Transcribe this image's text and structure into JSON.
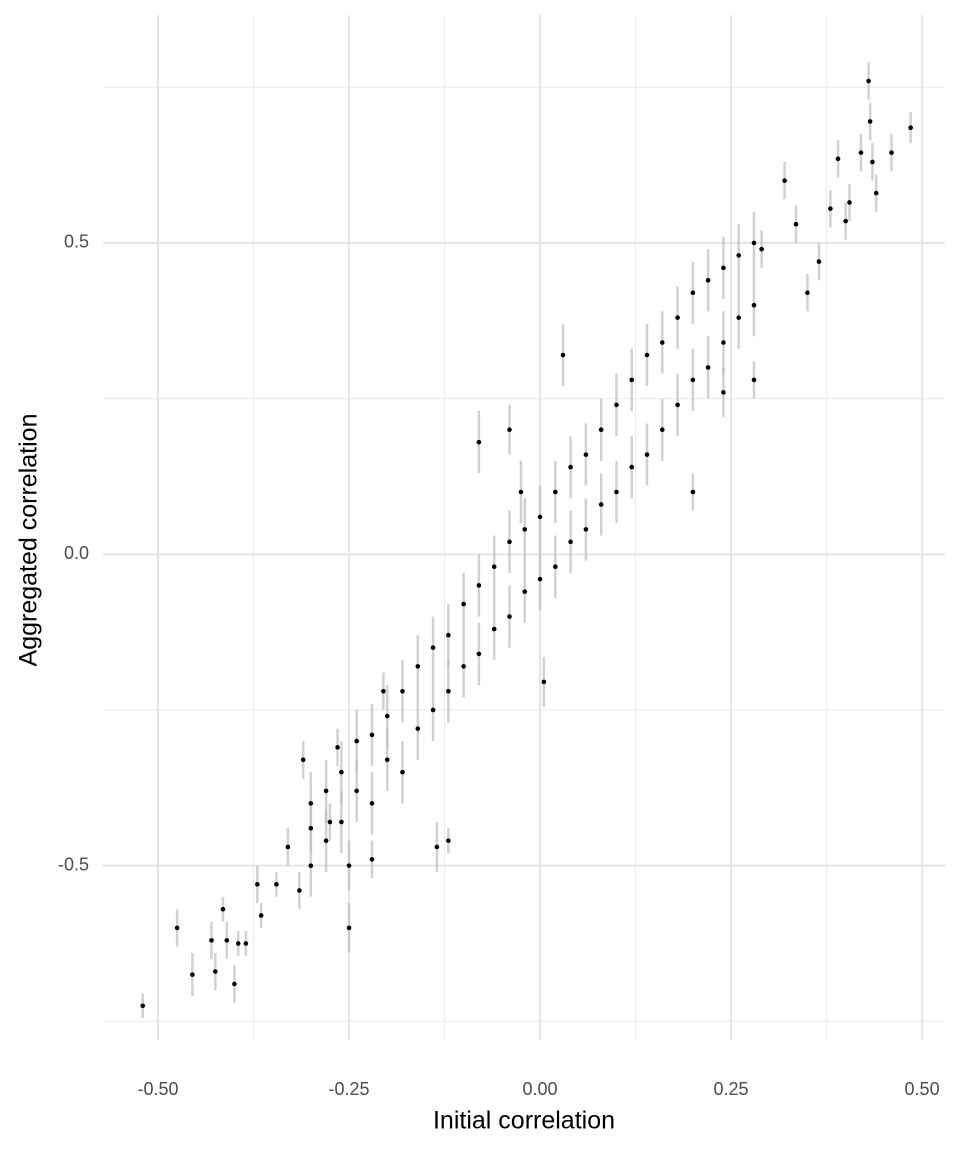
{
  "chart_data": {
    "type": "scatter",
    "x_label": "Initial correlation",
    "y_label": "Aggregated correlation",
    "xlim": [
      -0.572,
      0.53
    ],
    "ylim": [
      -0.78,
      0.866
    ],
    "xticks": [
      {
        "value": -0.5,
        "label": "-0.50"
      },
      {
        "value": -0.25,
        "label": "-0.25"
      },
      {
        "value": 0,
        "label": "0.00"
      },
      {
        "value": 0.25,
        "label": "0.25"
      },
      {
        "value": 0.5,
        "label": "0.50"
      }
    ],
    "yticks": [
      -0.5,
      {
        "value": 0,
        "label": "0.0"
      },
      0.5
    ],
    "x_minor_gridlines": [
      -0.375,
      -0.125,
      0.125,
      0.375
    ],
    "y_minor_gridlines": [
      -0.75,
      -0.25,
      0.25,
      0.75
    ],
    "grid": true,
    "color": "#000000",
    "error_color": "#bdbdbd",
    "x": [
      -0.52,
      -0.475,
      -0.455,
      -0.43,
      -0.425,
      -0.415,
      -0.41,
      -0.4,
      -0.395,
      -0.385,
      -0.37,
      -0.365,
      -0.345,
      -0.33,
      -0.315,
      -0.31,
      -0.3,
      -0.275,
      -0.265,
      -0.25,
      -0.25,
      -0.22,
      -0.205,
      -0.135,
      -0.12,
      -0.08,
      -0.04,
      -0.025,
      0.03,
      0.005,
      0.2,
      0.24,
      0.28,
      0.29,
      0.32,
      0.335,
      0.35,
      0.365,
      0.38,
      0.39,
      0.4,
      0.405,
      0.42,
      0.43,
      0.432,
      0.435,
      0.44,
      0.46,
      0.485,
      -0.3,
      -0.3,
      -0.28,
      -0.28,
      -0.26,
      -0.26,
      -0.24,
      -0.24,
      -0.22,
      -0.22,
      -0.2,
      -0.2,
      -0.18,
      -0.18,
      -0.16,
      -0.16,
      -0.14,
      -0.14,
      -0.12,
      -0.12,
      -0.1,
      -0.1,
      -0.08,
      -0.08,
      -0.06,
      -0.06,
      -0.04,
      -0.04,
      -0.02,
      -0.02,
      0,
      0,
      0.02,
      0.02,
      0.04,
      0.04,
      0.06,
      0.06,
      0.08,
      0.08,
      0.1,
      0.1,
      0.12,
      0.12,
      0.14,
      0.14,
      0.16,
      0.16,
      0.18,
      0.18,
      0.2,
      0.2,
      0.22,
      0.22,
      0.24,
      0.24,
      0.26,
      0.26,
      0.28,
      0.28
    ],
    "y": [
      -0.725,
      -0.6,
      -0.675,
      -0.62,
      -0.67,
      -0.57,
      -0.62,
      -0.69,
      -0.625,
      -0.625,
      -0.53,
      -0.58,
      -0.53,
      -0.47,
      -0.54,
      -0.33,
      -0.44,
      -0.43,
      -0.31,
      -0.6,
      -0.5,
      -0.49,
      -0.22,
      -0.47,
      -0.46,
      0.18,
      0.2,
      0.1,
      0.32,
      -0.205,
      0.1,
      0.26,
      0.28,
      0.49,
      0.6,
      0.53,
      0.42,
      0.47,
      0.555,
      0.635,
      0.535,
      0.565,
      0.645,
      0.76,
      0.695,
      0.63,
      0.58,
      0.645,
      0.685,
      -0.5,
      -0.4,
      -0.46,
      -0.38,
      -0.43,
      -0.35,
      -0.38,
      -0.3,
      -0.4,
      -0.29,
      -0.33,
      -0.26,
      -0.35,
      -0.22,
      -0.28,
      -0.18,
      -0.25,
      -0.15,
      -0.22,
      -0.13,
      -0.18,
      -0.08,
      -0.16,
      -0.05,
      -0.12,
      -0.02,
      -0.1,
      0.02,
      -0.06,
      0.04,
      -0.04,
      0.06,
      -0.02,
      0.1,
      0.02,
      0.14,
      0.04,
      0.16,
      0.08,
      0.2,
      0.1,
      0.24,
      0.14,
      0.28,
      0.16,
      0.32,
      0.2,
      0.34,
      0.24,
      0.38,
      0.28,
      0.42,
      0.3,
      0.44,
      0.34,
      0.46,
      0.38,
      0.48,
      0.4,
      0.5
    ],
    "error": [
      0.02,
      0.03,
      0.035,
      0.03,
      0.03,
      0.02,
      0.03,
      0.03,
      0.02,
      0.02,
      0.03,
      0.02,
      0.02,
      0.03,
      0.03,
      0.03,
      0.04,
      0.03,
      0.03,
      0.04,
      0.04,
      0.03,
      0.03,
      0.04,
      0.02,
      0.05,
      0.04,
      0.05,
      0.05,
      0.04,
      0.03,
      0.04,
      0.03,
      0.03,
      0.03,
      0.03,
      0.03,
      0.03,
      0.03,
      0.03,
      0.03,
      0.03,
      0.03,
      0.03,
      0.03,
      0.03,
      0.03,
      0.03,
      0.025,
      0.05,
      0.05,
      0.05,
      0.05,
      0.05,
      0.05,
      0.05,
      0.05,
      0.05,
      0.05,
      0.05,
      0.05,
      0.05,
      0.05,
      0.05,
      0.05,
      0.05,
      0.05,
      0.05,
      0.05,
      0.05,
      0.05,
      0.05,
      0.05,
      0.05,
      0.05,
      0.05,
      0.05,
      0.05,
      0.05,
      0.05,
      0.05,
      0.05,
      0.05,
      0.05,
      0.05,
      0.05,
      0.05,
      0.05,
      0.05,
      0.05,
      0.05,
      0.05,
      0.05,
      0.05,
      0.05,
      0.05,
      0.05,
      0.05,
      0.05,
      0.05,
      0.05,
      0.05,
      0.05,
      0.05,
      0.05,
      0.05,
      0.05,
      0.05,
      0.05
    ]
  }
}
